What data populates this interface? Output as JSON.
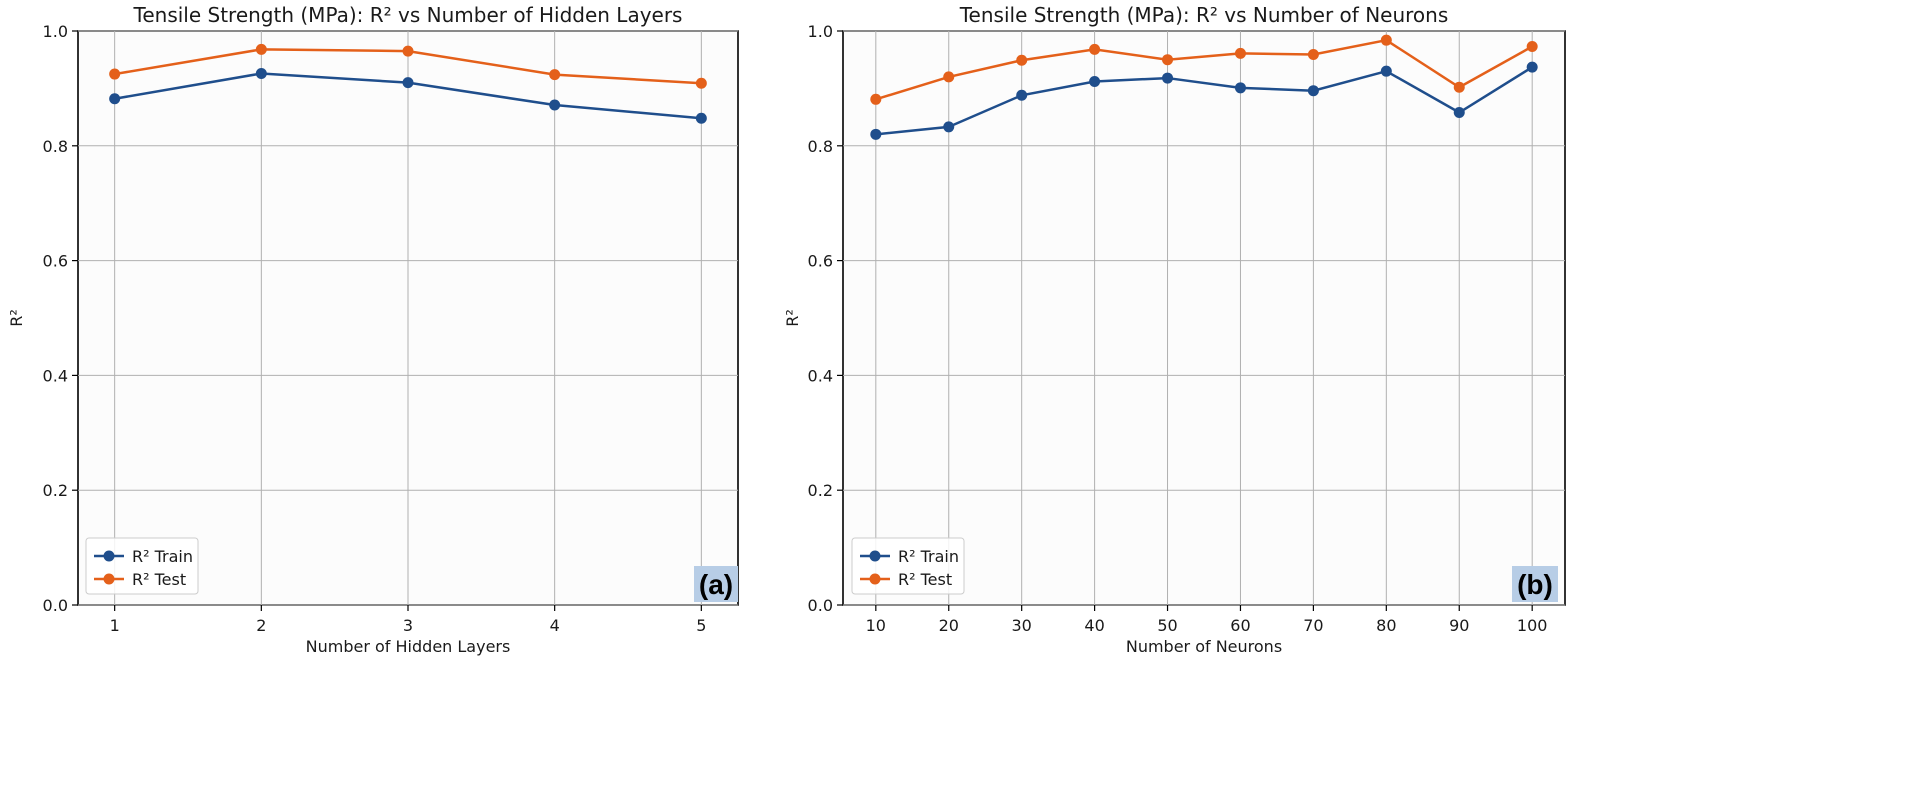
{
  "colors": {
    "train": "#1f4e8c",
    "test": "#e4601a",
    "panel_tag_bg": "#b7cde6",
    "grid": "#b0b0b0"
  },
  "chart_data": [
    {
      "type": "line",
      "title": "Tensile Strength (MPa): R² vs Number of Hidden Layers",
      "xlabel": "Number of Hidden Layers",
      "ylabel": "R²",
      "x": [
        1,
        2,
        3,
        4,
        5
      ],
      "xticks": [
        "1",
        "2",
        "3",
        "4",
        "5"
      ],
      "xlim": [
        0.75,
        5.25
      ],
      "ylim": [
        0.0,
        1.0
      ],
      "yticks": [
        "0.0",
        "0.2",
        "0.4",
        "0.6",
        "0.8",
        "1.0"
      ],
      "series": [
        {
          "name": "R² Train",
          "values": [
            0.882,
            0.926,
            0.91,
            0.871,
            0.848
          ]
        },
        {
          "name": "R² Test",
          "values": [
            0.925,
            0.968,
            0.965,
            0.924,
            0.909
          ]
        }
      ],
      "grid": true,
      "legend_position": "lower-left",
      "panel_tag": "(a)"
    },
    {
      "type": "line",
      "title": "Tensile Strength (MPa): R² vs Number of Neurons",
      "xlabel": "Number of Neurons",
      "ylabel": "R²",
      "x": [
        10,
        20,
        30,
        40,
        50,
        60,
        70,
        80,
        90,
        100
      ],
      "xticks": [
        "10",
        "20",
        "30",
        "40",
        "50",
        "60",
        "70",
        "80",
        "90",
        "100"
      ],
      "xlim": [
        5.5,
        104.5
      ],
      "ylim": [
        0.0,
        1.0
      ],
      "yticks": [
        "0.0",
        "0.2",
        "0.4",
        "0.6",
        "0.8",
        "1.0"
      ],
      "series": [
        {
          "name": "R² Train",
          "values": [
            0.82,
            0.833,
            0.888,
            0.912,
            0.918,
            0.901,
            0.896,
            0.93,
            0.858,
            0.937
          ]
        },
        {
          "name": "R² Test",
          "values": [
            0.881,
            0.92,
            0.949,
            0.968,
            0.95,
            0.961,
            0.959,
            0.984,
            0.902,
            0.973
          ]
        }
      ],
      "grid": true,
      "legend_position": "lower-left",
      "panel_tag": "(b)"
    }
  ]
}
